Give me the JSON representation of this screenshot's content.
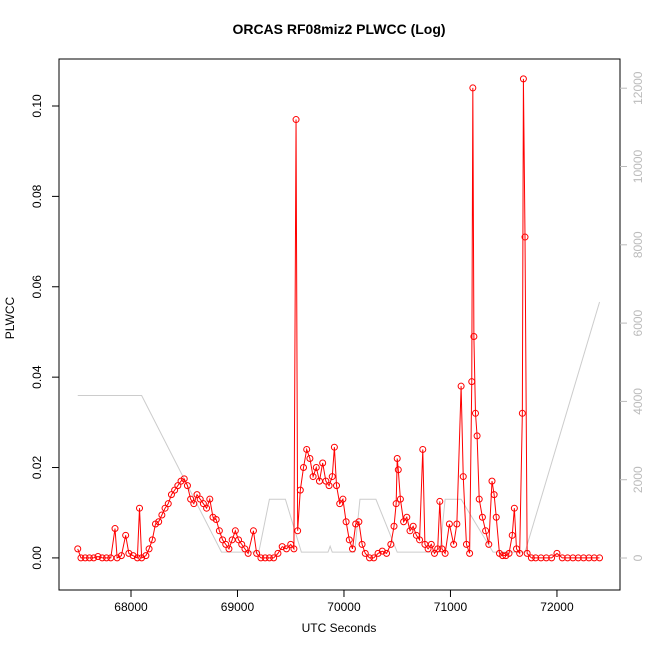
{
  "chart_data": {
    "type": "line",
    "title": "ORCAS RF08miz2 PLWCC (Log)",
    "xlabel": "UTC Seconds",
    "ylabel": "PLWCC",
    "xlim": [
      67324,
      72592
    ],
    "xticks": [
      68000,
      69000,
      70000,
      71000,
      72000
    ],
    "ylim": [
      -0.0071,
      0.1104
    ],
    "yticks": [
      {
        "value": 0,
        "label": "0.00"
      },
      0.02,
      0.04,
      0.06,
      0.08,
      {
        "value": 0.1,
        "label": "0.10"
      }
    ],
    "y2lim": [
      -817,
      12746
    ],
    "y2ticks": [
      0,
      2000,
      4000,
      6000,
      8000,
      10000,
      12000
    ],
    "series": [
      {
        "color": "#ff0000",
        "markers": true,
        "x": [
          67500,
          67530,
          67570,
          67610,
          67650,
          67690,
          67730,
          67770,
          67810,
          67850,
          67870,
          67910,
          67950,
          67980,
          68020,
          68060,
          68080,
          68100,
          68140,
          68170,
          68200,
          68230,
          68260,
          68290,
          68320,
          68350,
          68380,
          68410,
          68440,
          68470,
          68500,
          68530,
          68560,
          68590,
          68620,
          68650,
          68680,
          68710,
          68740,
          68770,
          68800,
          68830,
          68860,
          68890,
          68920,
          68950,
          68980,
          69010,
          69040,
          69070,
          69100,
          69150,
          69180,
          69220,
          69260,
          69300,
          69340,
          69380,
          69420,
          69460,
          69500,
          69530,
          69550,
          69565,
          69590,
          69620,
          69650,
          69680,
          69710,
          69740,
          69770,
          69800,
          69830,
          69860,
          69890,
          69910,
          69930,
          69960,
          69990,
          70020,
          70050,
          70080,
          70110,
          70140,
          70170,
          70200,
          70240,
          70280,
          70320,
          70360,
          70400,
          70440,
          70470,
          70490,
          70500,
          70510,
          70530,
          70560,
          70590,
          70620,
          70650,
          70680,
          70710,
          70740,
          70760,
          70790,
          70820,
          70850,
          70880,
          70900,
          70920,
          70950,
          70990,
          71030,
          71060,
          71100,
          71120,
          71150,
          71180,
          71200,
          71210,
          71220,
          71235,
          71250,
          71270,
          71300,
          71330,
          71360,
          71390,
          71410,
          71430,
          71460,
          71490,
          71520,
          71550,
          71580,
          71600,
          71620,
          71650,
          71675,
          71685,
          71700,
          71720,
          71760,
          71800,
          71850,
          71900,
          71950,
          72000,
          72050,
          72100,
          72150,
          72200,
          72250,
          72300,
          72350,
          72400
        ],
        "values": [
          0.002,
          0,
          0,
          0,
          0,
          0.0003,
          0,
          0,
          0,
          0.0065,
          0,
          0.0005,
          0.005,
          0.001,
          0.0005,
          0,
          0.011,
          0,
          0.0005,
          0.002,
          0.004,
          0.0075,
          0.008,
          0.0095,
          0.011,
          0.012,
          0.014,
          0.015,
          0.016,
          0.017,
          0.0175,
          0.016,
          0.013,
          0.012,
          0.014,
          0.013,
          0.012,
          0.011,
          0.013,
          0.009,
          0.0085,
          0.006,
          0.004,
          0.003,
          0.002,
          0.004,
          0.006,
          0.004,
          0.003,
          0.002,
          0.001,
          0.006,
          0.001,
          0,
          0,
          0,
          0,
          0.001,
          0.0025,
          0.002,
          0.003,
          0.002,
          0.097,
          0.006,
          0.015,
          0.02,
          0.024,
          0.022,
          0.018,
          0.02,
          0.017,
          0.021,
          0.017,
          0.016,
          0.018,
          0.0245,
          0.016,
          0.012,
          0.013,
          0.008,
          0.004,
          0.002,
          0.0075,
          0.008,
          0.003,
          0.001,
          0,
          0,
          0.001,
          0.0015,
          0.001,
          0.003,
          0.007,
          0.012,
          0.022,
          0.0195,
          0.013,
          0.008,
          0.009,
          0.006,
          0.007,
          0.005,
          0.004,
          0.024,
          0.003,
          0.002,
          0.003,
          0.001,
          0.002,
          0.0125,
          0.002,
          0.001,
          0.0075,
          0.003,
          0.0075,
          0.038,
          0.018,
          0.003,
          0.001,
          0.039,
          0.104,
          0.049,
          0.032,
          0.027,
          0.013,
          0.009,
          0.006,
          0.003,
          0.017,
          0.014,
          0.009,
          0.001,
          0.0005,
          0.0005,
          0.001,
          0.005,
          0.011,
          0.002,
          0.001,
          0.032,
          0.106,
          0.071,
          0.001,
          0,
          0,
          0,
          0,
          0,
          0.001,
          0,
          0,
          0,
          0,
          0,
          0,
          0,
          0
        ]
      },
      {
        "color": "#cccccc",
        "axis": "y2",
        "x": [
          67500,
          68100,
          68850,
          69200,
          69300,
          69450,
          69600,
          69850,
          69870,
          69890,
          70100,
          70150,
          70300,
          70500,
          70900,
          70950,
          71100,
          71400,
          71700,
          72400
        ],
        "values": [
          4150,
          4150,
          150,
          150,
          1500,
          1500,
          150,
          150,
          300,
          150,
          150,
          1500,
          1500,
          150,
          150,
          1500,
          1500,
          150,
          150,
          6540
        ]
      }
    ]
  }
}
